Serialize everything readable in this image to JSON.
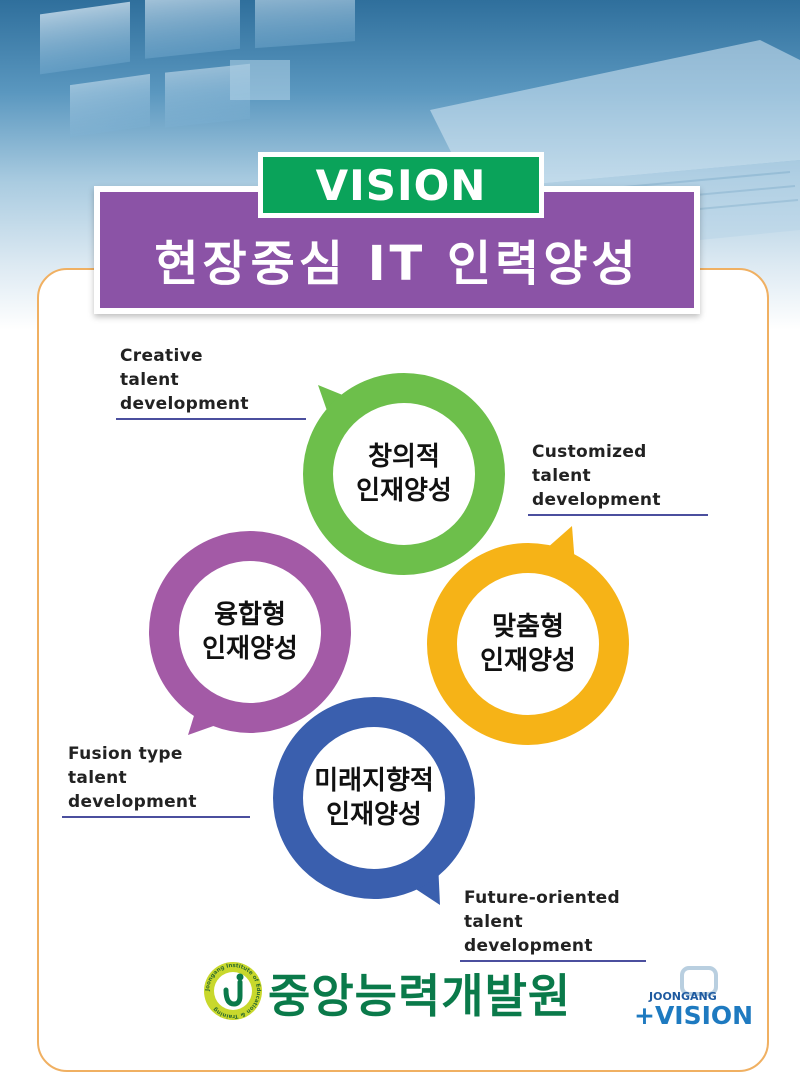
{
  "header": {
    "vision_label": "VISION",
    "slogan": "현장중심 IT 인력양성"
  },
  "bubbles": [
    {
      "id": "creative",
      "line1": "창의적",
      "line2": "인재양성",
      "color": "#6dbf4b"
    },
    {
      "id": "customized",
      "line1": "맞춤형",
      "line2": "인재양성",
      "color": "#f6b317"
    },
    {
      "id": "fusion",
      "line1": "융합형",
      "line2": "인재양성",
      "color": "#a35aa6"
    },
    {
      "id": "future",
      "line1": "미래지향적",
      "line2": "인재양성",
      "color": "#3a5fae"
    }
  ],
  "labels": {
    "creative": {
      "line1": "Creative",
      "line2": "talent development"
    },
    "customized": {
      "line1": "Customized",
      "line2": "talent development"
    },
    "fusion": {
      "line1": "Fusion type",
      "line2": "talent development"
    },
    "future": {
      "line1": "Future-oriented",
      "line2": "talent development"
    }
  },
  "footer": {
    "logo_name": "중앙능력개발원",
    "emblem_text": "Joongang Institute of Education & Training",
    "partner_small": "JOONGANG",
    "partner_big": "+VISION"
  },
  "colors": {
    "accent_green": "#0aa35a",
    "banner_purple": "#8b53a6",
    "card_border": "#f0b062",
    "label_rule": "#4b4f9e"
  }
}
